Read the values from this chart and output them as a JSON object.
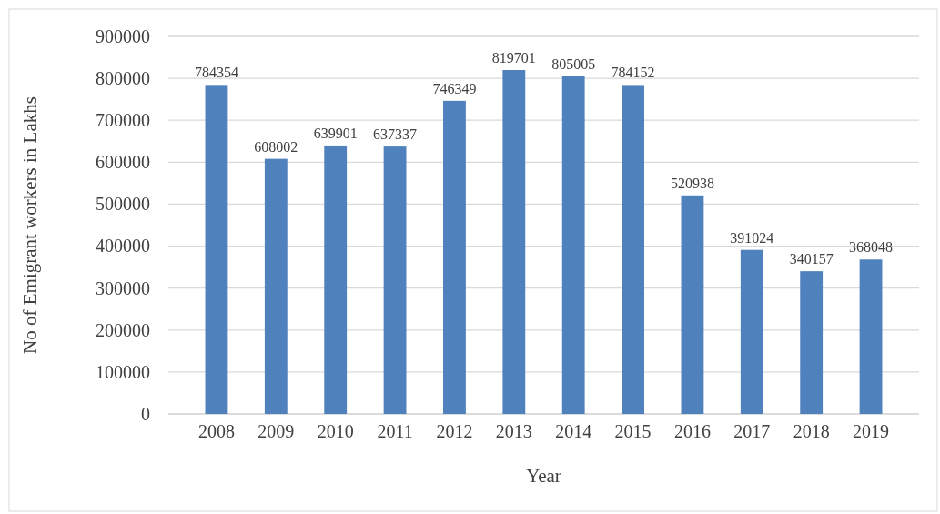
{
  "chart_data": {
    "type": "bar",
    "xlabel": "Year",
    "ylabel": "No of Emigrant workers in Lakhs",
    "categories": [
      "2008",
      "2009",
      "2010",
      "2011",
      "2012",
      "2013",
      "2014",
      "2015",
      "2016",
      "2017",
      "2018",
      "2019"
    ],
    "values": [
      784354,
      608002,
      639901,
      637337,
      746349,
      819701,
      805005,
      784152,
      520938,
      391024,
      340157,
      368048
    ],
    "color": "#4f81bd",
    "ylim": [
      0,
      900000
    ],
    "yticks": [
      0,
      100000,
      200000,
      300000,
      400000,
      500000,
      600000,
      700000,
      800000,
      900000
    ],
    "grid": "y",
    "data_labels": true
  }
}
